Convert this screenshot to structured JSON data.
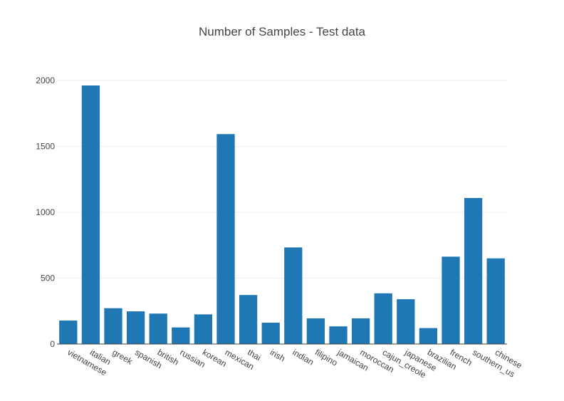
{
  "chart_data": {
    "type": "bar",
    "title": "Number of Samples - Test data",
    "xlabel": "",
    "ylabel": "",
    "categories": [
      "vietnamese",
      "italian",
      "greek",
      "spanish",
      "british",
      "russian",
      "korean",
      "mexican",
      "thai",
      "irish",
      "indian",
      "filipino",
      "jamaican",
      "moroccan",
      "cajun_creole",
      "japanese",
      "brazilian",
      "french",
      "southern_us",
      "chinese"
    ],
    "values": [
      178,
      1962,
      272,
      248,
      231,
      126,
      225,
      1593,
      372,
      162,
      733,
      195,
      134,
      195,
      385,
      340,
      121,
      663,
      1108,
      650
    ],
    "ylim": [
      0,
      2000
    ],
    "yticks": [
      0,
      500,
      1000,
      1500,
      2000
    ],
    "grid": true,
    "bar_color": "#1f77b4"
  }
}
